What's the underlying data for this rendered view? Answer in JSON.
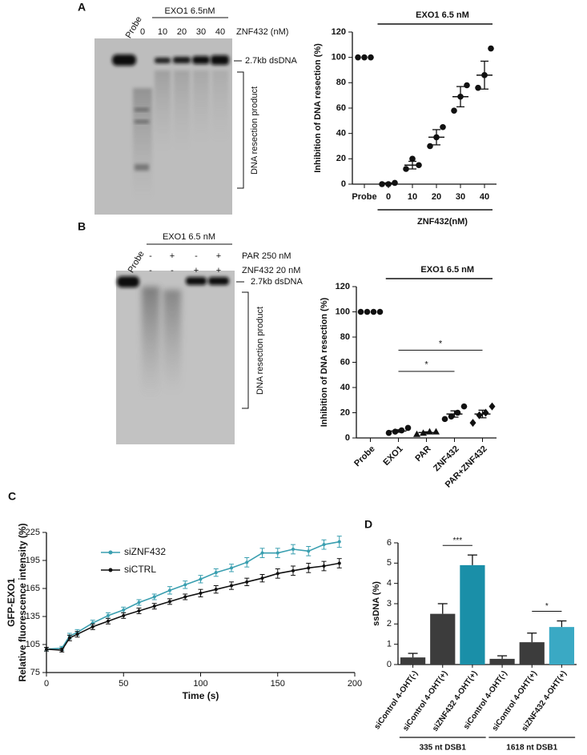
{
  "panels": [
    "A",
    "B",
    "C",
    "D"
  ],
  "gels": [
    {
      "probe": "Probe",
      "header": "EXO1 6.5nM",
      "lanes": [
        "0",
        "10",
        "20",
        "30",
        "40"
      ],
      "lane_title": "ZNF432 (nM)",
      "band": "2.7kb dsDNA",
      "product": "DNA resection product"
    },
    {
      "probe": "Probe",
      "header": "EXO1 6.5 nM",
      "rows": [
        {
          "label": "PAR 250 nM",
          "signs": [
            "-",
            "+",
            "-",
            "+"
          ]
        },
        {
          "label": "ZNF432 20 nM",
          "signs": [
            "-",
            "-",
            "+",
            "+"
          ]
        }
      ],
      "band": "2.7kb dsDNA",
      "product": "DNA resection product"
    }
  ],
  "chart_data": [
    {
      "type": "dotplot",
      "ylabel": "Inhibition of DNA resection (%)",
      "header": "EXO1 6.5 nM",
      "footer": "ZNF432(nM)",
      "categories": [
        "Probe",
        "0",
        "10",
        "20",
        "30",
        "40"
      ],
      "points": [
        [
          100,
          100,
          100
        ],
        [
          0,
          0,
          1
        ],
        [
          12,
          20,
          15
        ],
        [
          30,
          37,
          45
        ],
        [
          58,
          69,
          78
        ],
        [
          76,
          86,
          107
        ]
      ],
      "means": [
        null,
        0.5,
        15,
        37,
        69,
        86
      ],
      "sem": [
        null,
        0.5,
        3,
        6,
        8,
        11
      ],
      "color": "#111111",
      "ylim": [
        0,
        120
      ],
      "yticks": [
        0,
        20,
        40,
        60,
        80,
        100,
        120
      ]
    },
    {
      "type": "dotplot",
      "ylabel": "Inhibition of DNA resection (%)",
      "header": "EXO1 6.5 nM",
      "categories": [
        "Probe",
        "EXO1",
        "PAR",
        "ZNF432",
        "PAR+ZNF432"
      ],
      "markers": [
        "circle",
        "circle",
        "triangle",
        "circle",
        "diamond"
      ],
      "points": [
        [
          100,
          100,
          100,
          100
        ],
        [
          4,
          5,
          6,
          8
        ],
        [
          3,
          4,
          5,
          5
        ],
        [
          15,
          17,
          20,
          25
        ],
        [
          12,
          18,
          20,
          25
        ]
      ],
      "means": [
        null,
        5.5,
        4.3,
        19,
        19
      ],
      "sem": [
        null,
        1,
        0.6,
        2.5,
        3
      ],
      "significance": [
        {
          "pair": [
            "EXO1",
            "ZNF432"
          ],
          "label": "*"
        },
        {
          "pair": [
            "EXO1",
            "PAR+ZNF432"
          ],
          "label": "*"
        }
      ],
      "color": "#111111",
      "ylim": [
        0,
        120
      ],
      "yticks": [
        0,
        20,
        40,
        60,
        80,
        100,
        120
      ]
    },
    {
      "type": "line",
      "ylabel_title": "GFP-EXO1",
      "ylabel": "Relative fluorescence intensity (%)",
      "xlabel": "Time (s)",
      "x": [
        0,
        10,
        15,
        20,
        30,
        40,
        50,
        60,
        70,
        80,
        90,
        100,
        110,
        120,
        130,
        140,
        150,
        160,
        170,
        180,
        190
      ],
      "series": [
        {
          "name": "siZNF432",
          "color": "#3a9fb0",
          "values": [
            100,
            101,
            114,
            118,
            128,
            136,
            142,
            150,
            156,
            163,
            169,
            175,
            182,
            187,
            193,
            203,
            203,
            207,
            205,
            212,
            215
          ],
          "errors": [
            2,
            2,
            3,
            3,
            3,
            3,
            3,
            3,
            3,
            4,
            4,
            4,
            4,
            4,
            5,
            5,
            5,
            5,
            5,
            5,
            6
          ]
        },
        {
          "name": "siCTRL",
          "color": "#111111",
          "values": [
            100,
            99,
            112,
            116,
            124,
            130,
            136,
            141,
            146,
            151,
            156,
            160,
            164,
            168,
            172,
            176,
            181,
            184,
            187,
            189,
            192
          ],
          "errors": [
            2,
            2,
            3,
            3,
            3,
            3,
            3,
            3,
            3,
            3,
            3,
            4,
            4,
            4,
            4,
            4,
            5,
            5,
            5,
            5,
            5
          ]
        }
      ],
      "legend": "upper left",
      "xlim": [
        0,
        200
      ],
      "xticks": [
        0,
        50,
        100,
        150,
        200
      ],
      "ylim": [
        75,
        225
      ],
      "yticks": [
        75,
        105,
        135,
        165,
        195,
        225
      ]
    },
    {
      "type": "bar",
      "ylabel": "ssDNA (%)",
      "categories": [
        "siControl 4-OHT(-)",
        "siControl 4-OHT(+)",
        "siZNF432 4-OHT(+)",
        "siControl 4-OHT(-)",
        "siControl 4-OHT(+)",
        "siZNF432 4-OHT(+)"
      ],
      "values": [
        0.35,
        2.5,
        4.9,
        0.28,
        1.1,
        1.85
      ],
      "errors": [
        0.2,
        0.5,
        0.5,
        0.15,
        0.45,
        0.3
      ],
      "colors": [
        "#3c3c3c",
        "#3c3c3c",
        "#1a8fa8",
        "#3c3c3c",
        "#3c3c3c",
        "#3aa9c4"
      ],
      "groups": [
        {
          "label": "335 nt DSB1",
          "size": 3
        },
        {
          "label": "1618 nt DSB1",
          "size": 3
        }
      ],
      "significance": [
        {
          "pair": [
            1,
            2
          ],
          "label": "***"
        },
        {
          "pair": [
            4,
            5
          ],
          "label": "*"
        }
      ],
      "ylim": [
        0,
        6
      ],
      "yticks": [
        0,
        1,
        2,
        3,
        4,
        5,
        6
      ]
    }
  ]
}
